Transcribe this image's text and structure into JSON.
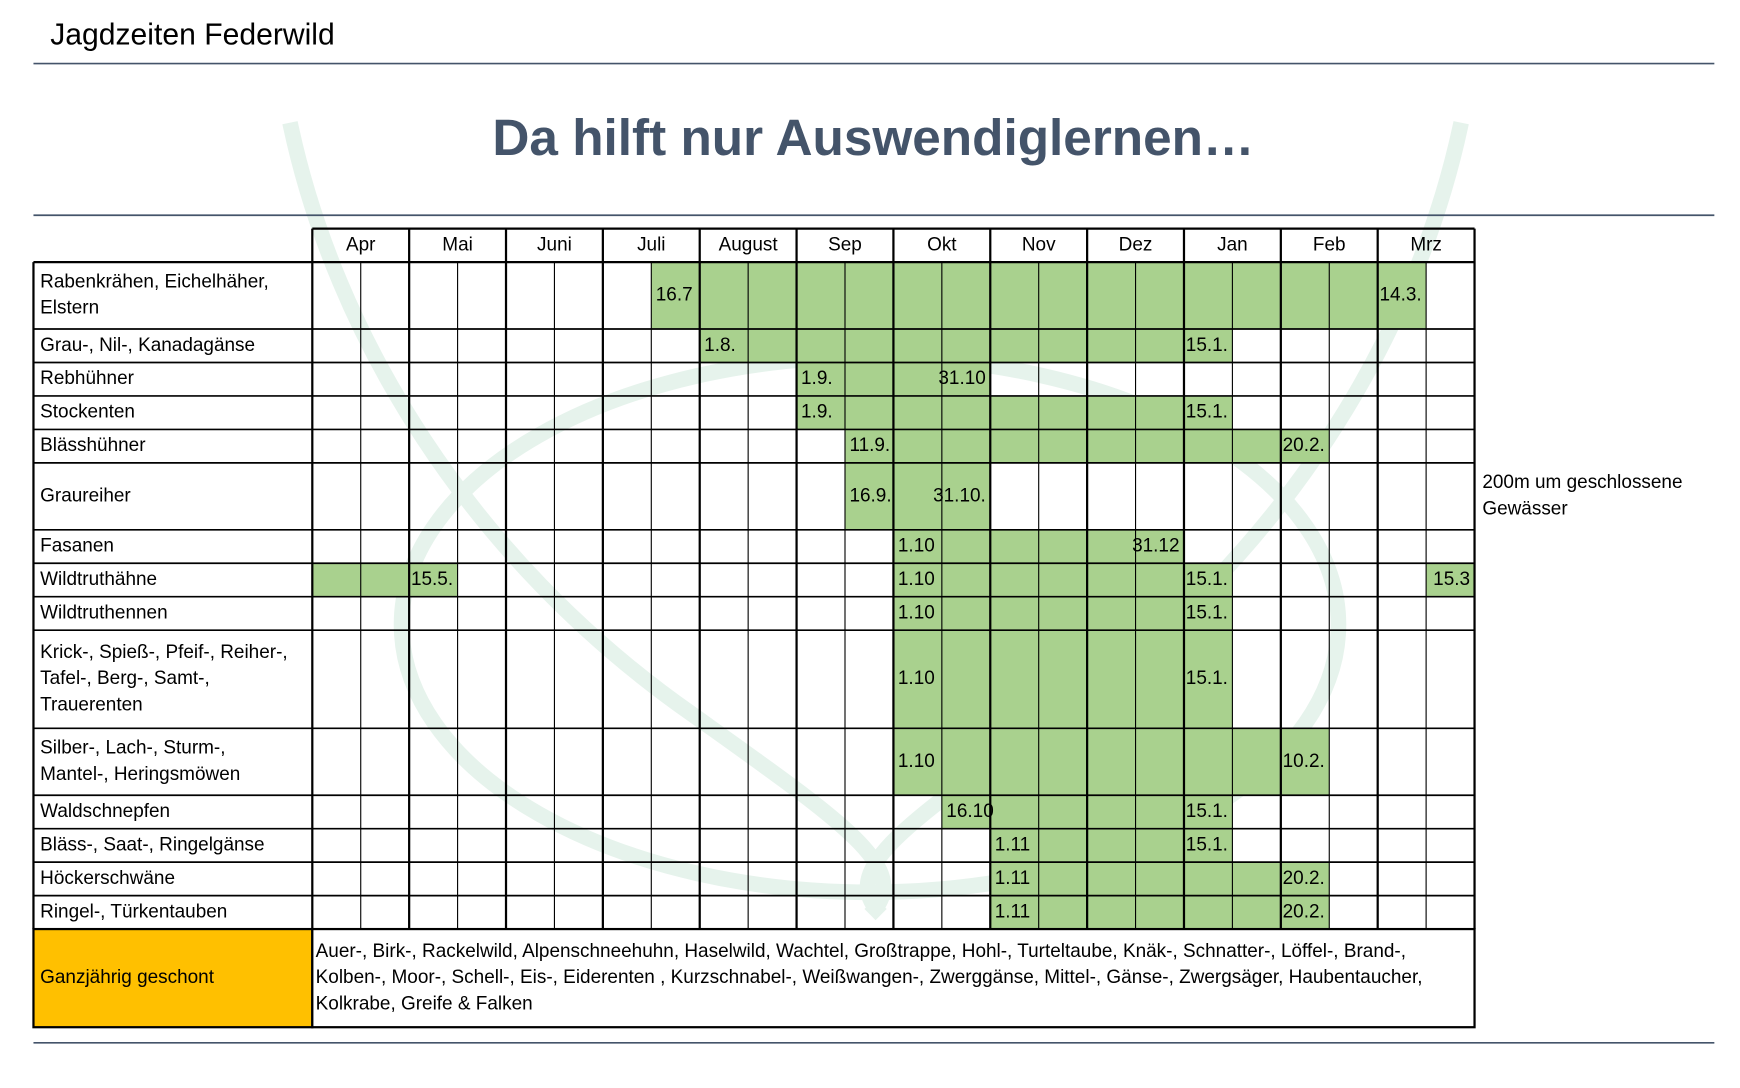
{
  "header": {
    "title": "Jagdzeiten Federwild",
    "headline": "Da hilft nur Auswendiglernen…"
  },
  "table": {
    "months": [
      "Apr",
      "Mai",
      "Juni",
      "Juli",
      "August",
      "Sep",
      "Okt",
      "Nov",
      "Dez",
      "Jan",
      "Feb",
      "Mrz"
    ],
    "rows": [
      {
        "label": [
          "Rabenkrähen, Eichelhäher,",
          "Elstern"
        ],
        "spans": [
          {
            "cells": [
              7,
              22
            ],
            "start": "16.7",
            "end": "14.3."
          }
        ]
      },
      {
        "label": [
          "Grau-, Nil-, Kanadagänse"
        ],
        "spans": [
          {
            "cells": [
              8,
              18
            ],
            "start": "1.8.",
            "end": "15.1."
          }
        ]
      },
      {
        "label": [
          "Rebhühner"
        ],
        "spans": [
          {
            "cells": [
              10,
              13
            ],
            "start": "1.9.",
            "end": "31.10"
          }
        ]
      },
      {
        "label": [
          "Stockenten"
        ],
        "spans": [
          {
            "cells": [
              10,
              18
            ],
            "start": "1.9.",
            "end": "15.1."
          }
        ]
      },
      {
        "label": [
          "Blässhühner"
        ],
        "spans": [
          {
            "cells": [
              11,
              20
            ],
            "start": "11.9.",
            "end": "20.2."
          }
        ]
      },
      {
        "label": [
          "Graureiher"
        ],
        "spans": [
          {
            "cells": [
              11,
              13
            ],
            "start": "16.9.",
            "end": "31.10."
          }
        ],
        "note": [
          "200m um geschlossene",
          "Gewässer"
        ]
      },
      {
        "label": [
          "Fasanen"
        ],
        "spans": [
          {
            "cells": [
              12,
              17
            ],
            "start": "1.10",
            "end": "31.12"
          }
        ]
      },
      {
        "label": [
          "Wildtruthähne"
        ],
        "spans": [
          {
            "cells": [
              0,
              2
            ],
            "end": "15.5."
          },
          {
            "cells": [
              12,
              18
            ],
            "start": "1.10",
            "end": "15.1."
          },
          {
            "cells": [
              23,
              23
            ],
            "end": "15.3"
          }
        ]
      },
      {
        "label": [
          "Wildtruthennen"
        ],
        "spans": [
          {
            "cells": [
              12,
              18
            ],
            "start": "1.10",
            "end": "15.1."
          }
        ]
      },
      {
        "label": [
          "Krick-, Spieß-, Pfeif-, Reiher-,",
          "Tafel-, Berg-, Samt-,",
          "Trauerenten"
        ],
        "spans": [
          {
            "cells": [
              12,
              18
            ],
            "start": "1.10",
            "end": "15.1."
          }
        ]
      },
      {
        "label": [
          "Silber-, Lach-, Sturm-,",
          "Mantel-, Heringsmöwen"
        ],
        "spans": [
          {
            "cells": [
              12,
              20
            ],
            "start": "1.10",
            "end": "10.2."
          }
        ]
      },
      {
        "label": [
          "Waldschnepfen"
        ],
        "spans": [
          {
            "cells": [
              13,
              18
            ],
            "start": "16.10",
            "end": "15.1."
          }
        ]
      },
      {
        "label": [
          "Bläss-, Saat-, Ringelgänse"
        ],
        "spans": [
          {
            "cells": [
              14,
              18
            ],
            "start": "1.11",
            "end": "15.1."
          }
        ]
      },
      {
        "label": [
          "Höckerschwäne"
        ],
        "spans": [
          {
            "cells": [
              14,
              20
            ],
            "start": "1.11",
            "end": "20.2."
          }
        ]
      },
      {
        "label": [
          "Ringel-, Türkentauben"
        ],
        "spans": [
          {
            "cells": [
              14,
              20
            ],
            "start": "1.11",
            "end": "20.2."
          }
        ]
      }
    ],
    "footer": {
      "label": "Ganzjährig geschont",
      "text": [
        "Auer-, Birk-, Rackelwild, Alpenschneehuhn, Haselwild, Wachtel, Großtrappe, Hohl-, Turteltaube, Knäk-, Schnatter-, Löffel-, Brand-,",
        "Kolben-, Moor-, Schell-, Eis-, Eiderenten , Kurzschnabel-, Weißwangen-, Zwerggänse, Mittel-, Gänse-, Zwergsäger, Haubentaucher,",
        "Kolkrabe, Greife & Falken"
      ]
    }
  }
}
